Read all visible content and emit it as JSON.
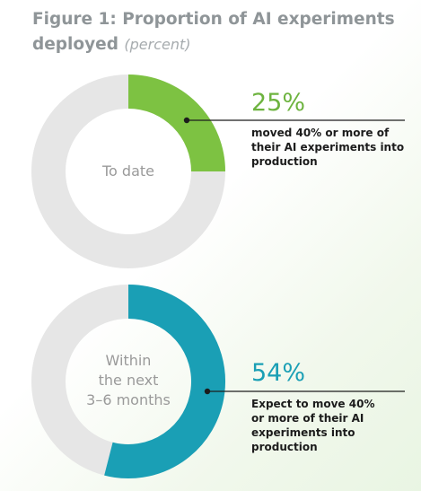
{
  "figure": {
    "title": "Figure 1: Proportion of AI experiments deployed",
    "title_main": "Figure 1: Proportion of AI experiments",
    "title_line2": "deployed",
    "unit_note": "(percent)"
  },
  "colors": {
    "green": "#7dc242",
    "teal": "#1a9fb5",
    "ring_gray": "#e6e6e6",
    "green_text": "#6db33f",
    "teal_text": "#1a9fb5"
  },
  "chart_data": {
    "type": "pie",
    "title": "Figure 1: Proportion of AI experiments deployed (percent)",
    "charts": [
      {
        "center_label": "To date",
        "value": 25,
        "value_label": "25%",
        "description": "moved 40% or more of their AI experiments into production",
        "color": "#7dc242"
      },
      {
        "center_label": "Within the next 3–6 months",
        "value": 54,
        "value_label": "54%",
        "description": "Expect to move 40% or more of their AI experiments into production",
        "color": "#1a9fb5"
      }
    ]
  },
  "annotations": [
    {
      "value_label": "25%",
      "lines": [
        "moved 40% or more of",
        "their AI experiments into",
        "production"
      ],
      "center_lines": [
        "To date"
      ]
    },
    {
      "value_label": "54%",
      "lines": [
        "Expect to move 40%",
        "or more of their AI",
        "experiments into",
        "production"
      ],
      "center_lines": [
        "Within",
        "the next",
        "3–6 months"
      ]
    }
  ]
}
